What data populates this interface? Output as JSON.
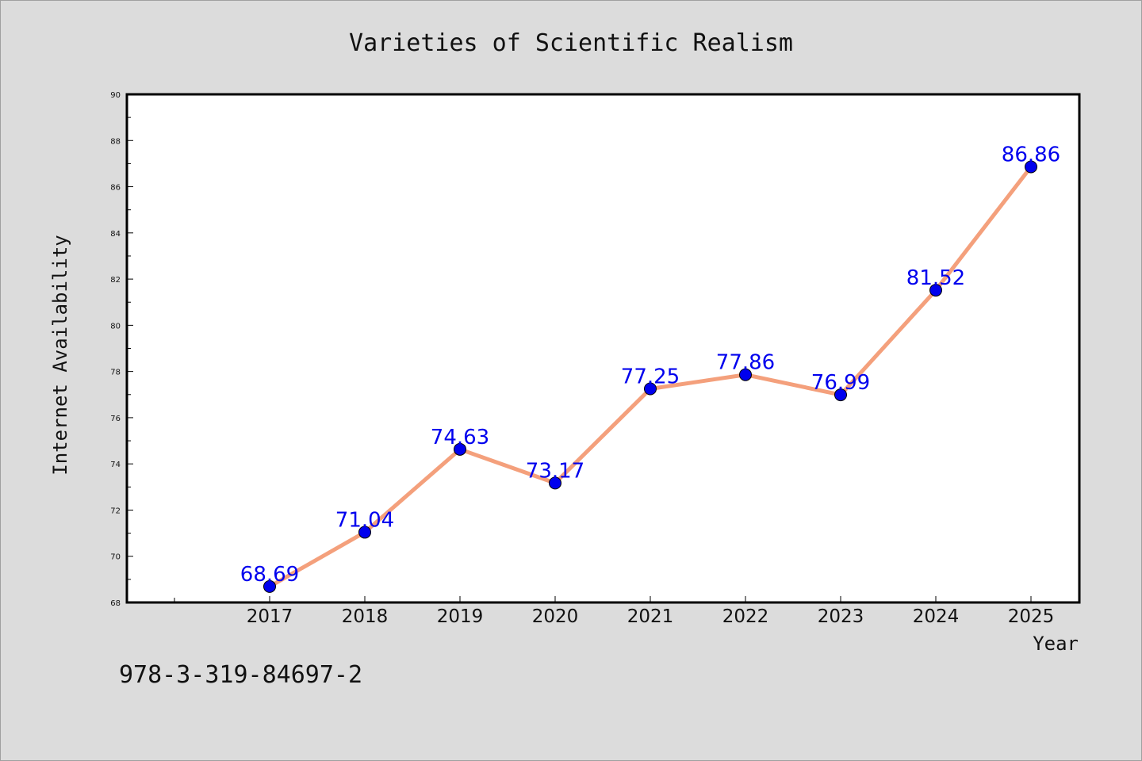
{
  "chart_data": {
    "type": "line",
    "title": "Varieties of Scientific Realism",
    "xlabel": "Year",
    "ylabel": "Internet Availability",
    "categories": [
      "2017",
      "2018",
      "2019",
      "2020",
      "2021",
      "2022",
      "2023",
      "2024",
      "2025"
    ],
    "values": [
      68.69,
      71.04,
      74.63,
      73.17,
      77.25,
      77.86,
      76.99,
      81.52,
      86.86
    ],
    "data_labels": [
      "68.69",
      "71.04",
      "74.63",
      "73.17",
      "77.25",
      "77.86",
      "76.99",
      "81.52",
      "86.86"
    ],
    "ylim": [
      68,
      90
    ],
    "yticks": [
      "68",
      "70",
      "72",
      "74",
      "76",
      "78",
      "80",
      "82",
      "84",
      "86",
      "88",
      "90"
    ],
    "grid": false,
    "legend": "none",
    "colors": {
      "line": "#f4a07c",
      "marker": "#0000ee",
      "data_label": "#0000ee",
      "plot_bg": "#ffffff",
      "figure_bg": "#dcdcdc"
    }
  },
  "footer": {
    "isbn": "978-3-319-84697-2"
  }
}
